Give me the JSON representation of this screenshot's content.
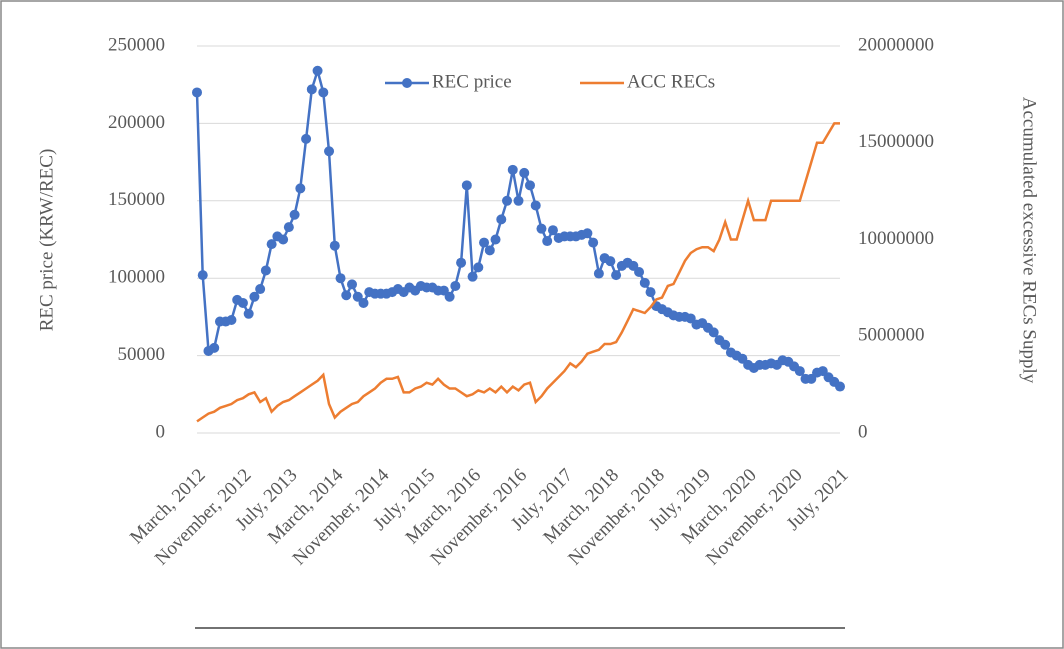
{
  "chart_data": {
    "type": "line",
    "categories": [
      "March, 2012",
      null,
      null,
      null,
      null,
      null,
      null,
      null,
      "November, 2012",
      null,
      null,
      null,
      null,
      null,
      null,
      null,
      "July, 2013",
      null,
      null,
      null,
      null,
      null,
      null,
      null,
      "March, 2014",
      null,
      null,
      null,
      null,
      null,
      null,
      null,
      "November, 2014",
      null,
      null,
      null,
      null,
      null,
      null,
      null,
      "July, 2015",
      null,
      null,
      null,
      null,
      null,
      null,
      null,
      "March, 2016",
      null,
      null,
      null,
      null,
      null,
      null,
      null,
      "November, 2016",
      null,
      null,
      null,
      null,
      null,
      null,
      null,
      "July, 2017",
      null,
      null,
      null,
      null,
      null,
      null,
      null,
      "March, 2018",
      null,
      null,
      null,
      null,
      null,
      null,
      null,
      "November, 2018",
      null,
      null,
      null,
      null,
      null,
      null,
      null,
      "July, 2019",
      null,
      null,
      null,
      null,
      null,
      null,
      null,
      "March, 2020",
      null,
      null,
      null,
      null,
      null,
      null,
      null,
      "November, 2020",
      null,
      null,
      null,
      null,
      null,
      null,
      null,
      "July, 2021"
    ],
    "y_label": "REC price (KRW/REC)",
    "y2_label": "Accumulated excessive RECs Supply",
    "ylim": [
      0,
      250000
    ],
    "yticks": [
      0,
      50000,
      100000,
      150000,
      200000,
      250000
    ],
    "y2lim": [
      0,
      20000000
    ],
    "y2ticks": [
      0,
      5000000,
      10000000,
      15000000,
      20000000
    ],
    "grid": true,
    "legend": "top",
    "series": [
      {
        "name": "REC price",
        "color": "#4472c4",
        "marker": "circle",
        "values": [
          220000,
          102000,
          53000,
          55000,
          72000,
          72000,
          73000,
          86000,
          84000,
          77000,
          88000,
          93000,
          105000,
          122000,
          127000,
          125000,
          133000,
          141000,
          158000,
          190000,
          222000,
          234000,
          220000,
          182000,
          121000,
          100000,
          89000,
          96000,
          88000,
          84000,
          91000,
          90000,
          90000,
          90000,
          91000,
          93000,
          91000,
          94000,
          92000,
          95000,
          94000,
          94000,
          92000,
          92000,
          88000,
          95000,
          110000,
          160000,
          101000,
          107000,
          123000,
          118000,
          125000,
          138000,
          150000,
          170000,
          150000,
          168000,
          160000,
          147000,
          132000,
          124000,
          131000,
          126000,
          127000,
          127000,
          127000,
          128000,
          129000,
          123000,
          103000,
          113000,
          111000,
          102000,
          108000,
          110000,
          108000,
          104000,
          97000,
          91000,
          82000,
          80000,
          78000,
          76000,
          75000,
          75000,
          74000,
          70000,
          71000,
          68000,
          65000,
          60000,
          57000,
          52000,
          50000,
          48000,
          44000,
          42000,
          44000,
          44000,
          45000,
          44000,
          47000,
          46000,
          43000,
          40000,
          35000,
          35000,
          39000,
          40000,
          36000,
          33000,
          30000
        ]
      },
      {
        "name": "ACC RECs",
        "color": "#ed7d31",
        "axis": "y2",
        "values": [
          600000,
          800000,
          1000000,
          1100000,
          1300000,
          1400000,
          1500000,
          1700000,
          1800000,
          2000000,
          2100000,
          1600000,
          1800000,
          1100000,
          1400000,
          1600000,
          1700000,
          1900000,
          2100000,
          2300000,
          2500000,
          2700000,
          3000000,
          1500000,
          800000,
          1100000,
          1300000,
          1500000,
          1600000,
          1900000,
          2100000,
          2300000,
          2600000,
          2800000,
          2800000,
          2900000,
          2100000,
          2100000,
          2300000,
          2400000,
          2600000,
          2500000,
          2800000,
          2500000,
          2300000,
          2300000,
          2100000,
          1900000,
          2000000,
          2200000,
          2100000,
          2300000,
          2100000,
          2400000,
          2100000,
          2400000,
          2200000,
          2500000,
          2600000,
          1600000,
          1900000,
          2300000,
          2600000,
          2900000,
          3200000,
          3600000,
          3400000,
          3700000,
          4100000,
          4200000,
          4300000,
          4600000,
          4600000,
          4700000,
          5200000,
          5800000,
          6400000,
          6300000,
          6200000,
          6500000,
          6900000,
          7000000,
          7600000,
          7700000,
          8300000,
          8900000,
          9300000,
          9500000,
          9600000,
          9600000,
          9400000,
          10000000,
          10900000,
          10000000,
          10000000,
          11000000,
          12000000,
          11000000,
          11000000,
          11000000,
          12000000,
          12000000,
          12000000,
          12000000,
          12000000,
          12000000,
          13000000,
          14000000,
          15000000,
          15000000,
          15500000,
          16000000,
          16000000
        ]
      }
    ]
  }
}
